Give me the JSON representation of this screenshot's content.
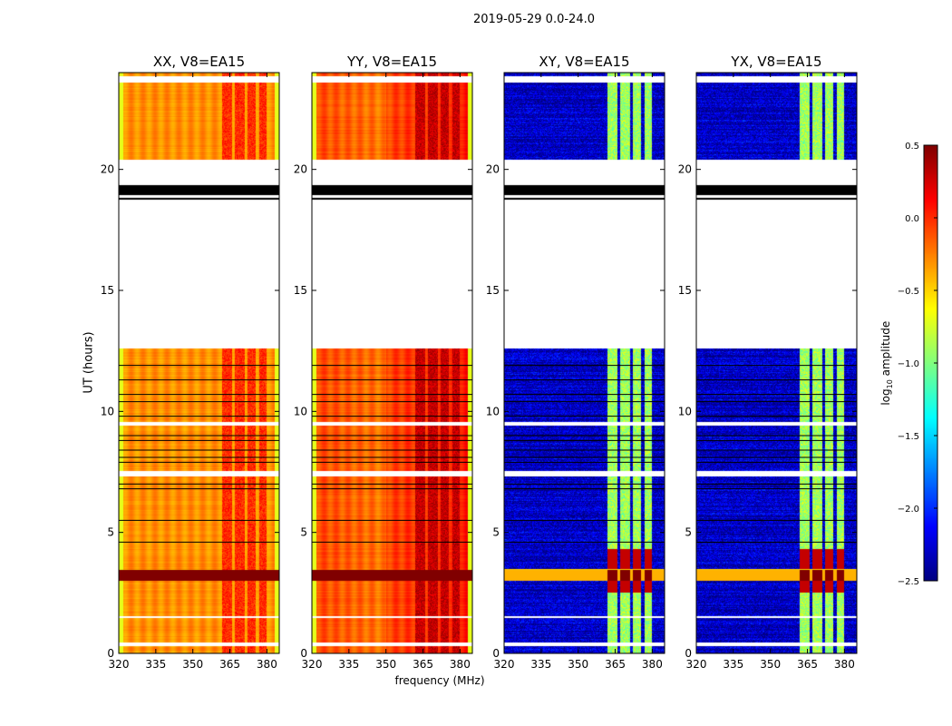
{
  "chart_data": {
    "type": "heatmap",
    "title": "2019-05-29 0.0-24.0",
    "xlabel": "frequency (MHz)",
    "ylabel": "UT (hours)",
    "xlim": [
      320,
      385
    ],
    "ylim": [
      0,
      24
    ],
    "xticks": [
      320,
      335,
      350,
      365,
      380
    ],
    "yticks": [
      0,
      5,
      10,
      15,
      20
    ],
    "colorbar": {
      "label_prefix": "log",
      "label_sub": "10",
      "label_suffix": " amplitude",
      "range": [
        -2.5,
        0.5
      ],
      "ticks": [
        "0.5",
        "0.0",
        "−0.5",
        "−1.0",
        "−1.5",
        "−2.0",
        "−2.5"
      ],
      "tick_values": [
        0.5,
        0.0,
        -0.5,
        -1.0,
        -1.5,
        -2.0,
        -2.5
      ],
      "colormap": "jet"
    },
    "panels": [
      {
        "title": "XX, V8=EA15",
        "base_level": -0.3,
        "rfi_level": 0.0,
        "kind": "parallel"
      },
      {
        "title": "YY, V8=EA15",
        "base_level": -0.15,
        "rfi_level": 0.3,
        "kind": "parallel"
      },
      {
        "title": "XY, V8=EA15",
        "base_level": -2.3,
        "rfi_level": -0.9,
        "kind": "cross"
      },
      {
        "title": "YX, V8=EA15",
        "base_level": -2.3,
        "rfi_level": -0.9,
        "kind": "cross"
      }
    ],
    "rfi_bands_mhz": [
      [
        362,
        366
      ],
      [
        367,
        371
      ],
      [
        372,
        375.5
      ],
      [
        377,
        380
      ]
    ],
    "strong_band_hours": [
      3.0,
      3.45
    ],
    "flagged_white_hours": [
      [
        0.3,
        0.45
      ],
      [
        1.45,
        1.52
      ],
      [
        7.3,
        7.55
      ],
      [
        9.4,
        9.55
      ],
      [
        12.6,
        20.4
      ],
      [
        23.6,
        23.85
      ]
    ],
    "flagged_black_hours": [
      [
        18.95,
        19.35
      ],
      [
        18.75,
        18.82
      ]
    ],
    "black_line_hours": [
      4.6,
      5.5,
      6.8,
      7.0,
      7.9,
      8.1,
      8.4,
      8.8,
      9.0,
      9.8,
      10.4,
      10.7,
      11.3,
      11.9
    ]
  }
}
